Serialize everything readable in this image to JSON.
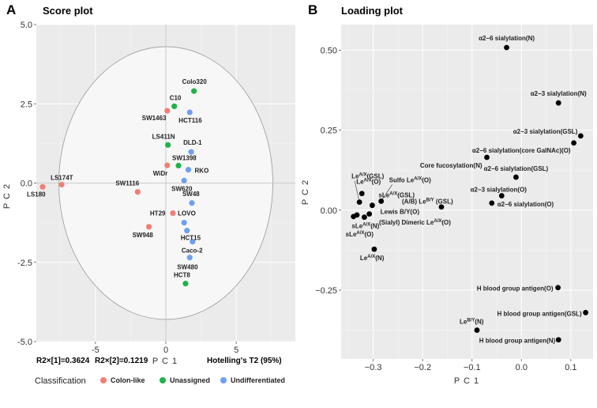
{
  "chart_data": [
    {
      "type": "scatter",
      "panel": "A",
      "title": "Score plot",
      "xlabel": "P C 1",
      "ylabel": "P C 2",
      "xlim": [
        -9.2,
        9.2
      ],
      "ylim": [
        -5.0,
        5.0
      ],
      "xticks": [
        -5,
        0,
        5
      ],
      "yticks": [
        -5.0,
        -2.5,
        0.0,
        2.5,
        5.0
      ],
      "ytick_labels": [
        "-5.0",
        "-2.5",
        "0.0",
        "2.5",
        "5.0"
      ],
      "xtick_labels": [
        "-5",
        "0",
        "5"
      ],
      "ellipse": {
        "label": "Hotelling's T2 (95%)",
        "rx": 7.6,
        "ry": 4.3
      },
      "stats": {
        "r2x1": "R2×[1]=0.3624",
        "r2x2": "R2×[2]=0.1219",
        "hotelling": "Hotelling's T2 (95%)"
      },
      "legend": {
        "title": "Classification",
        "entries": [
          {
            "name": "Colon-like",
            "color": "#f07f73"
          },
          {
            "name": "Unassigned",
            "color": "#21b24b"
          },
          {
            "name": "Undifferentiated",
            "color": "#6fa0f0"
          }
        ]
      },
      "points": [
        {
          "name": "LS174T",
          "x": -7.4,
          "y": -0.05,
          "cls": "Colon-like"
        },
        {
          "name": "LS180",
          "x": -8.75,
          "y": -0.12,
          "cls": "Colon-like"
        },
        {
          "name": "C10",
          "x": 0.6,
          "y": 2.42,
          "cls": "Unassigned"
        },
        {
          "name": "SW1463",
          "x": 0.1,
          "y": 2.28,
          "cls": "Colon-like"
        },
        {
          "name": "Colo320",
          "x": 2.0,
          "y": 2.9,
          "cls": "Unassigned"
        },
        {
          "name": "HCT116",
          "x": 1.7,
          "y": 2.23,
          "cls": "Undifferentiated"
        },
        {
          "name": "LS411N",
          "x": 0.15,
          "y": 1.2,
          "cls": "Unassigned"
        },
        {
          "name": "DLD-1",
          "x": 1.8,
          "y": 0.98,
          "cls": "Undifferentiated"
        },
        {
          "name": "SW1398",
          "x": 0.9,
          "y": 0.55,
          "cls": "Unassigned"
        },
        {
          "name": "WiDr",
          "x": 0.1,
          "y": 0.56,
          "cls": "Colon-like"
        },
        {
          "name": "RKO",
          "x": 1.6,
          "y": 0.42,
          "cls": "Undifferentiated"
        },
        {
          "name": "SW620",
          "x": 1.3,
          "y": 0.08,
          "cls": "Undifferentiated"
        },
        {
          "name": "SW1116",
          "x": -2.0,
          "y": -0.28,
          "cls": "Colon-like"
        },
        {
          "name": "SW48",
          "x": 1.85,
          "y": -0.63,
          "cls": "Undifferentiated"
        },
        {
          "name": "HT29",
          "x": 0.5,
          "y": -0.95,
          "cls": "Colon-like"
        },
        {
          "name": "LOVO",
          "x": 1.3,
          "y": -1.25,
          "cls": "Undifferentiated"
        },
        {
          "name": "SW948",
          "x": -1.2,
          "y": -1.38,
          "cls": "Colon-like"
        },
        {
          "name": "HCT15",
          "x": 1.5,
          "y": -1.5,
          "cls": "Undifferentiated"
        },
        {
          "name": "Caco-2",
          "x": 1.9,
          "y": -1.85,
          "cls": "Undifferentiated"
        },
        {
          "name": "SW480",
          "x": 1.7,
          "y": -2.35,
          "cls": "Undifferentiated"
        },
        {
          "name": "HCT8",
          "x": 1.4,
          "y": -3.17,
          "cls": "Unassigned"
        }
      ]
    },
    {
      "type": "scatter",
      "panel": "B",
      "title": "Loading plot",
      "xlabel": "P C 1",
      "ylabel": "P C 2",
      "xlim": [
        -0.365,
        0.145
      ],
      "ylim": [
        -0.465,
        0.58
      ],
      "xticks": [
        -0.3,
        -0.2,
        -0.1,
        0.0,
        0.1
      ],
      "xtick_labels": [
        "−0.3",
        "−0.2",
        "−0.1",
        "0.0",
        "0.1"
      ],
      "yticks": [
        -0.25,
        0.0,
        0.25,
        0.5
      ],
      "ytick_labels": [
        "−0.25",
        "0.00",
        "0.25",
        "0.50"
      ],
      "points": [
        {
          "text": "α2−6 sialylation(N)",
          "x": -0.03,
          "y": 0.508
        },
        {
          "text": "α2−3 sialylation(N)",
          "x": 0.075,
          "y": 0.335
        },
        {
          "text": "α2−3 sialylation(GSL)",
          "x": 0.12,
          "y": 0.232
        },
        {
          "text": "α2−6 sialylation(core GalNAc)(O)",
          "x": 0.106,
          "y": 0.21
        },
        {
          "text": "Core fucosylation(N)",
          "x": -0.07,
          "y": 0.165
        },
        {
          "text": "α2−6 sialylation(GSL)",
          "x": -0.011,
          "y": 0.103
        },
        {
          "text": "α2−3 sialylation(O)",
          "x": -0.04,
          "y": 0.045
        },
        {
          "text": "α2−6 sialylation(O)",
          "x": -0.06,
          "y": 0.022
        },
        {
          "text": "Le",
          "sup": "A/X",
          "suffix": "(GSL)",
          "x": -0.328,
          "y": 0.025
        },
        {
          "text": "Le",
          "sup": "A/X",
          "suffix": "(O)",
          "x": -0.323,
          "y": 0.052
        },
        {
          "text": "Sulfo Le",
          "sup": "A/X",
          "suffix": "(O)",
          "x": -0.284,
          "y": 0.028
        },
        {
          "text": "sLe",
          "sup": "A/X",
          "suffix": "(GSL)",
          "x": -0.302,
          "y": 0.015
        },
        {
          "text": "(A/B) Le",
          "sup": "B/Y",
          "suffix": " (GSL)",
          "x": -0.162,
          "y": 0.01
        },
        {
          "text": "Lewis B/Y(O)",
          "x": -0.308,
          "y": -0.012
        },
        {
          "text": "(Sialyl) Dimeric Le",
          "sup": "A/X",
          "suffix": "(O)",
          "x": -0.333,
          "y": -0.015
        },
        {
          "text": "sLe",
          "sup": "A/X",
          "suffix": "(N)",
          "x": -0.318,
          "y": -0.022
        },
        {
          "text": "sLe",
          "sup": "A/X",
          "suffix": "(O)",
          "x": -0.34,
          "y": -0.02
        },
        {
          "text": "Le",
          "sup": "A/X",
          "suffix": "(N)",
          "x": -0.298,
          "y": -0.122
        },
        {
          "text": "H blood group antigen(O)",
          "x": 0.074,
          "y": -0.242
        },
        {
          "text": "H blood group antigen(GSL)",
          "x": 0.13,
          "y": -0.32
        },
        {
          "text": "Le",
          "sup": "B/Y",
          "suffix": "(N)",
          "x": -0.09,
          "y": -0.375
        },
        {
          "text": "H blood group antigen(N)",
          "x": 0.075,
          "y": -0.405
        }
      ]
    }
  ]
}
